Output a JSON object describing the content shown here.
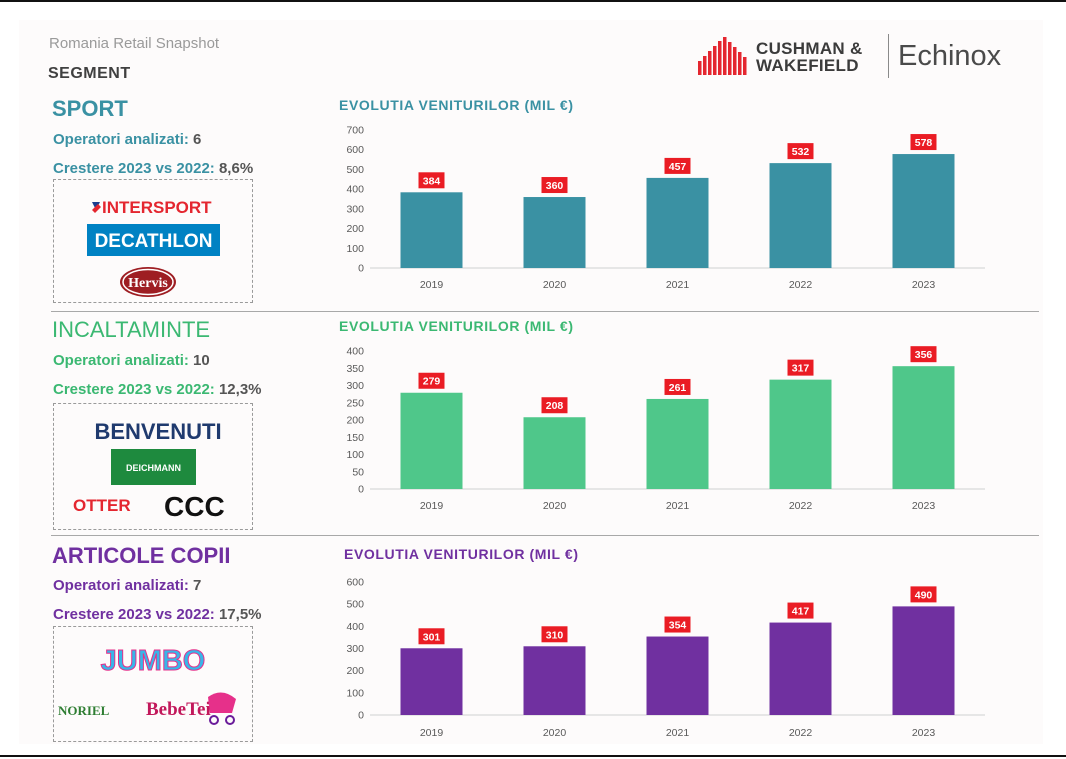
{
  "header": {
    "subtitle": "Romania Retail Snapshot",
    "segment_label": "SEGMENT",
    "brand_line1": "CUSHMAN &",
    "brand_line2": "WAKEFIELD",
    "partner": "Echinox"
  },
  "sections": [
    {
      "title": "SPORT",
      "operators_label": "Operatori analizati:",
      "operators_value": "6",
      "growth_label": "Crestere 2023 vs 2022:",
      "growth_value": "8,6%",
      "accent": "#3a91a3",
      "logos": [
        "INTERSPORT",
        "DECATHLON",
        "Hervis"
      ]
    },
    {
      "title": "INCALTAMINTE",
      "operators_label": "Operatori analizati:",
      "operators_value": "10",
      "growth_label": "Crestere 2023 vs 2022:",
      "growth_value": "12,3%",
      "accent": "#4fc78a",
      "logos": [
        "BENVENUTI",
        "DEICHMANN",
        "OTTER",
        "CCC"
      ]
    },
    {
      "title": "ARTICOLE COPII",
      "operators_label": "Operatori analizati:",
      "operators_value": "7",
      "growth_label": "Crestere 2023 vs 2022:",
      "growth_value": "17,5%",
      "accent": "#7030a0",
      "logos": [
        "JUMBO",
        "NORIEL",
        "BebeTei"
      ]
    }
  ],
  "chart_data": [
    {
      "type": "bar",
      "title": "EVOLUTIA VENITURILOR (MIL €)",
      "categories": [
        "2019",
        "2020",
        "2021",
        "2022",
        "2023"
      ],
      "values": [
        384,
        360,
        457,
        532,
        578
      ],
      "ylim": [
        0,
        700
      ],
      "yticks": [
        0,
        100,
        200,
        300,
        400,
        500,
        600,
        700
      ],
      "color": "#3a91a3",
      "title_color": "#3a91a3",
      "label_color": "#ea1c24",
      "grid": false
    },
    {
      "type": "bar",
      "title": "EVOLUTIA VENITURILOR (MIL €)",
      "categories": [
        "2019",
        "2020",
        "2021",
        "2022",
        "2023"
      ],
      "values": [
        279,
        208,
        261,
        317,
        356
      ],
      "ylim": [
        0,
        400
      ],
      "yticks": [
        0,
        50,
        100,
        150,
        200,
        250,
        300,
        350,
        400
      ],
      "color": "#4fc78a",
      "title_color": "#3bb872",
      "label_color": "#ea1c24",
      "grid": false
    },
    {
      "type": "bar",
      "title": "EVOLUTIA VENITURILOR (MIL €)",
      "categories": [
        "2019",
        "2020",
        "2021",
        "2022",
        "2023"
      ],
      "values": [
        301,
        310,
        354,
        417,
        490
      ],
      "ylim": [
        0,
        600
      ],
      "yticks": [
        0,
        100,
        200,
        300,
        400,
        500,
        600
      ],
      "color": "#7030a0",
      "title_color": "#7030a0",
      "label_color": "#ea1c24",
      "grid": false
    }
  ]
}
